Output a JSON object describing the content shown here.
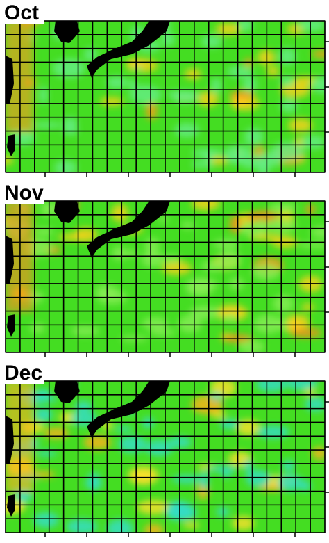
{
  "panels": [
    {
      "label": "Oct"
    },
    {
      "label": "Nov"
    },
    {
      "label": "Dec"
    }
  ]
}
